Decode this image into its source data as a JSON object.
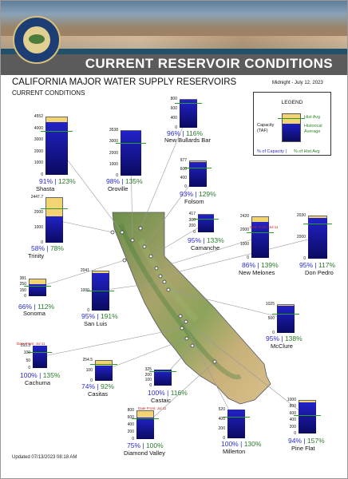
{
  "header": {
    "banner_title": "CURRENT RESERVOIR CONDITIONS",
    "seal_text": "GREAT SEAL OF THE STATE OF CALIFORNIA"
  },
  "main_title": "CALIFORNIA MAJOR WATER SUPPLY RESERVOIRS",
  "sub_title": "CURRENT CONDITIONS",
  "date_label": "Midnight - July 12, 2023",
  "updated": "Updated 07/13/2023 08:18 AM",
  "legend": {
    "title": "LEGEND",
    "capacity": "Capacity (TAF)",
    "hist_avg": "Hist Avg",
    "historical_average": "Historical Average",
    "pct_capacity": "% of Capacity",
    "separator": "|",
    "pct_hist_avg": "% of Hist Avg"
  },
  "colors": {
    "storage": "#1d1dc2",
    "capacity": "#f2d472",
    "hist_avg_line": "#2e9b2e",
    "pct_capacity_text": "#2b2bd6",
    "pct_hist_text": "#2a7a2a",
    "date_from_text": "#c42020"
  },
  "chart_data": {
    "type": "bar",
    "reservoirs": [
      {
        "name": "Shasta",
        "capacity": "4552",
        "ticks": [
          "4552",
          "4000",
          "3000",
          "2000",
          "1000",
          "0"
        ],
        "pct_capacity": "91%",
        "pct_hist_avg": "123%"
      },
      {
        "name": "Oroville",
        "capacity": "3538",
        "ticks": [
          "3538",
          "3000",
          "2000",
          "1000",
          "0"
        ],
        "pct_capacity": "98%",
        "pct_hist_avg": "135%"
      },
      {
        "name": "New Bullards Bar",
        "capacity": "966",
        "ticks": [
          "800",
          "600",
          "400",
          "0"
        ],
        "pct_capacity": "96%",
        "pct_hist_avg": "116%"
      },
      {
        "name": "Trinity",
        "capacity": "2447.7",
        "ticks": [
          "2447.7",
          "2000",
          "1000",
          "0"
        ],
        "pct_capacity": "58%",
        "pct_hist_avg": "78%"
      },
      {
        "name": "Folsom",
        "capacity": "977",
        "ticks": [
          "977",
          "600",
          "400",
          "0"
        ],
        "pct_capacity": "93%",
        "pct_hist_avg": "129%"
      },
      {
        "name": "Camanche",
        "capacity": "417",
        "ticks": [
          "417",
          "300",
          "200",
          "0"
        ],
        "pct_capacity": "95%",
        "pct_hist_avg": "133%"
      },
      {
        "name": "New Melones",
        "capacity": "2420",
        "ticks": [
          "2420",
          "2000",
          "1000",
          "0"
        ],
        "pct_capacity": "86%",
        "pct_hist_avg": "139%",
        "date_from": "Date From: Jul 11"
      },
      {
        "name": "Don Pedro",
        "capacity": "2030",
        "ticks": [
          "2030",
          "2000",
          "0"
        ],
        "pct_capacity": "95%",
        "pct_hist_avg": "117%"
      },
      {
        "name": "Sonoma",
        "capacity": "381",
        "ticks": [
          "381",
          "250",
          "150",
          "0"
        ],
        "pct_capacity": "66%",
        "pct_hist_avg": "112%"
      },
      {
        "name": "San Luis",
        "capacity": "2041",
        "ticks": [
          "2041",
          "1000",
          "0"
        ],
        "pct_capacity": "95%",
        "pct_hist_avg": "191%"
      },
      {
        "name": "McClure",
        "capacity": "1025",
        "ticks": [
          "1025",
          "500",
          "0"
        ],
        "pct_capacity": "95%",
        "pct_hist_avg": "138%"
      },
      {
        "name": "Cachuma",
        "capacity": "193.3",
        "ticks": [
          "193.3",
          "100",
          "50",
          "0"
        ],
        "pct_capacity": "100%",
        "pct_hist_avg": "135%",
        "date_from": "Date From: Jul 11"
      },
      {
        "name": "Casitas",
        "capacity": "254.5",
        "ticks": [
          "254.5",
          "100",
          "0"
        ],
        "pct_capacity": "74%",
        "pct_hist_avg": "92%"
      },
      {
        "name": "Castaic",
        "capacity": "325",
        "ticks": [
          "325",
          "200",
          "100",
          "0"
        ],
        "pct_capacity": "100%",
        "pct_hist_avg": "116%"
      },
      {
        "name": "Diamond Valley",
        "capacity": "810",
        "ticks": [
          "800",
          "600",
          "400",
          "200",
          "0"
        ],
        "pct_capacity": "75%",
        "pct_hist_avg": "100%",
        "date_from": "Date From: Jul 11"
      },
      {
        "name": "Millerton",
        "capacity": "520",
        "ticks": [
          "520",
          "400",
          "200",
          "0"
        ],
        "pct_capacity": "100%",
        "pct_hist_avg": "130%"
      },
      {
        "name": "Pine Flat",
        "capacity": "1000",
        "ticks": [
          "1000",
          "800",
          "600",
          "400",
          "200",
          "0"
        ],
        "pct_capacity": "94%",
        "pct_hist_avg": "157%"
      }
    ]
  }
}
